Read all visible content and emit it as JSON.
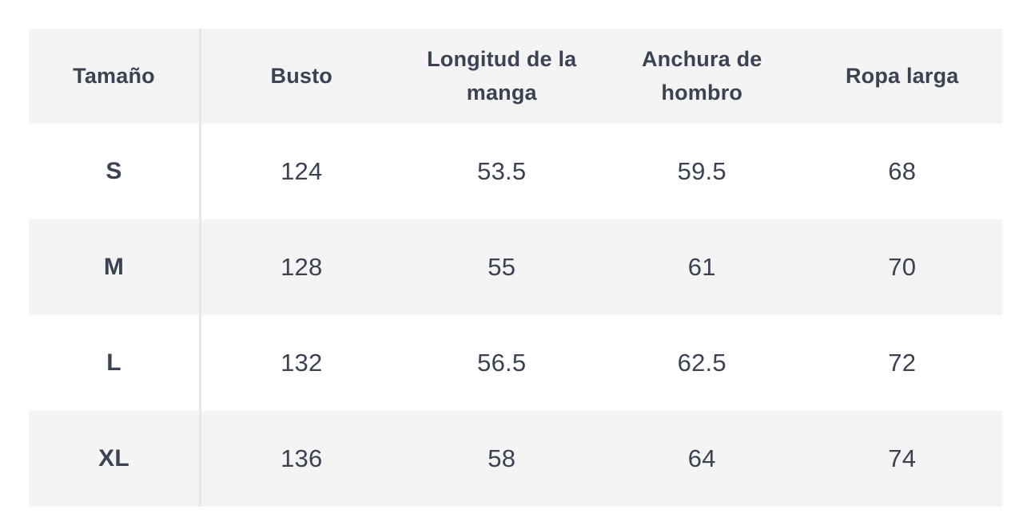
{
  "table": {
    "columns": [
      {
        "label": "Tamaño"
      },
      {
        "label": "Busto"
      },
      {
        "label": "Longitud de la manga"
      },
      {
        "label": "Anchura de hombro"
      },
      {
        "label": "Ropa larga"
      }
    ],
    "rows": [
      {
        "size": "S",
        "values": [
          "124",
          "53.5",
          "59.5",
          "68"
        ]
      },
      {
        "size": "M",
        "values": [
          "128",
          "55",
          "61",
          "70"
        ]
      },
      {
        "size": "L",
        "values": [
          "132",
          "56.5",
          "62.5",
          "72"
        ]
      },
      {
        "size": "XL",
        "values": [
          "136",
          "58",
          "64",
          "74"
        ]
      }
    ],
    "colors": {
      "text": "#3b4251",
      "header_bg": "#f4f4f5",
      "stripe_bg": "#f4f4f5",
      "row_bg": "#ffffff",
      "divider": "#e7e7e9",
      "page_bg": "#ffffff"
    }
  }
}
